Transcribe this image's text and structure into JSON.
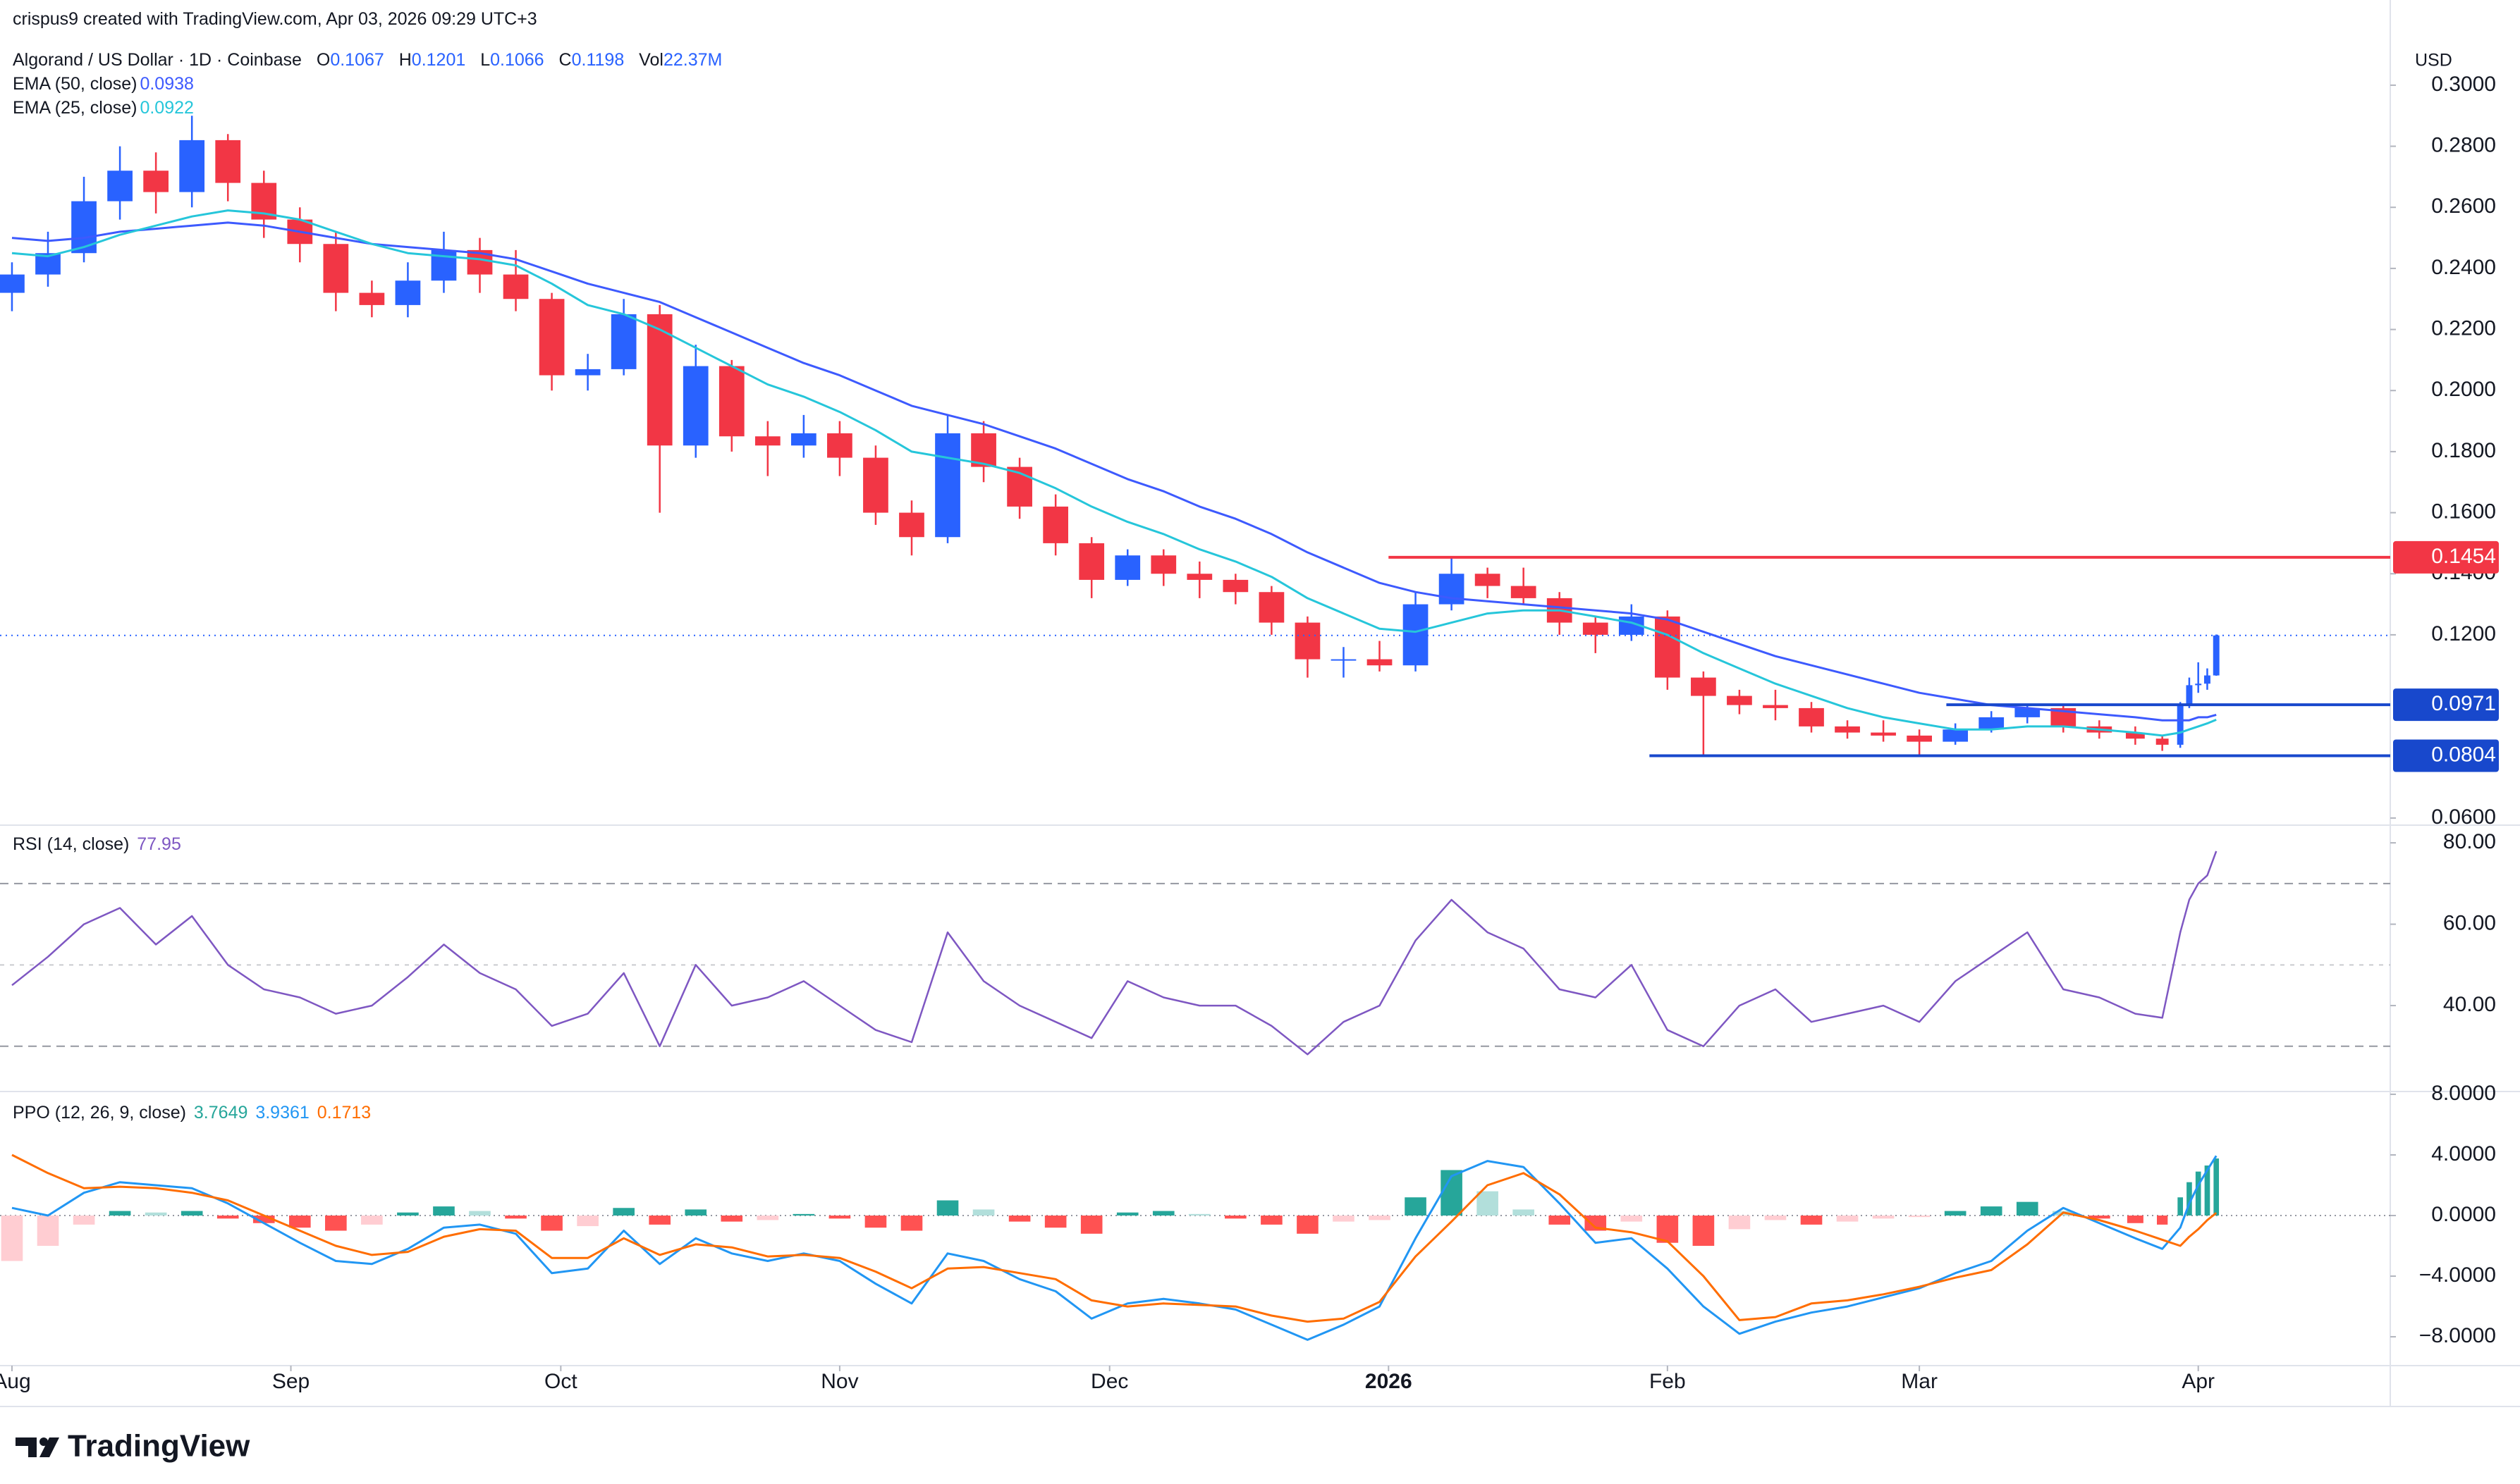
{
  "header": {
    "author_line": "crispus9 created with TradingView.com, Apr 03, 2026 09:29 UTC+3",
    "currency": "USD",
    "brand": "TradingView"
  },
  "chart_data": [
    {
      "type": "candlestick",
      "title": "Algorand / US Dollar · 1D · Coinbase",
      "ohlc_labels": [
        "O",
        "H",
        "L",
        "C"
      ],
      "volume_label": "Vol",
      "volume": "22.37M",
      "up_color": "#2962ff",
      "down_color": "#f23645",
      "x": [
        0,
        4,
        8,
        12,
        16,
        20,
        24,
        28,
        32,
        36,
        40,
        44,
        48,
        52,
        56,
        60,
        64,
        68,
        72,
        76,
        80,
        84,
        88,
        92,
        96,
        100,
        104,
        108,
        112,
        116,
        120,
        124,
        128,
        132,
        136,
        140,
        144,
        148,
        152,
        156,
        160,
        164,
        168,
        172,
        176,
        180,
        184,
        188,
        192,
        196,
        200,
        204,
        208,
        212,
        216,
        220,
        224,
        228,
        232,
        236,
        239,
        241,
        242,
        243,
        244,
        245
      ],
      "open": [
        0.232,
        0.238,
        0.245,
        0.262,
        0.272,
        0.265,
        0.282,
        0.268,
        0.256,
        0.248,
        0.232,
        0.228,
        0.236,
        0.246,
        0.238,
        0.23,
        0.205,
        0.207,
        0.225,
        0.182,
        0.208,
        0.185,
        0.182,
        0.186,
        0.178,
        0.16,
        0.152,
        0.186,
        0.175,
        0.162,
        0.15,
        0.138,
        0.146,
        0.14,
        0.138,
        0.134,
        0.124,
        0.112,
        0.112,
        0.11,
        0.13,
        0.14,
        0.136,
        0.132,
        0.124,
        0.12,
        0.126,
        0.106,
        0.1,
        0.097,
        0.096,
        0.09,
        0.088,
        0.087,
        0.085,
        0.089,
        0.093,
        0.096,
        0.09,
        0.088,
        0.086,
        0.084,
        0.097,
        0.1035,
        0.104,
        0.1067
      ],
      "high": [
        0.242,
        0.252,
        0.27,
        0.28,
        0.278,
        0.29,
        0.284,
        0.272,
        0.26,
        0.252,
        0.236,
        0.242,
        0.252,
        0.25,
        0.246,
        0.232,
        0.212,
        0.23,
        0.228,
        0.215,
        0.21,
        0.19,
        0.192,
        0.19,
        0.182,
        0.164,
        0.192,
        0.19,
        0.178,
        0.166,
        0.152,
        0.148,
        0.148,
        0.144,
        0.14,
        0.136,
        0.126,
        0.116,
        0.118,
        0.134,
        0.1454,
        0.142,
        0.142,
        0.134,
        0.126,
        0.13,
        0.128,
        0.108,
        0.102,
        0.102,
        0.098,
        0.092,
        0.092,
        0.089,
        0.091,
        0.095,
        0.0971,
        0.097,
        0.092,
        0.09,
        0.087,
        0.098,
        0.106,
        0.111,
        0.109,
        0.1201
      ],
      "low": [
        0.226,
        0.234,
        0.242,
        0.256,
        0.258,
        0.26,
        0.262,
        0.25,
        0.242,
        0.226,
        0.224,
        0.224,
        0.232,
        0.232,
        0.226,
        0.2,
        0.2,
        0.205,
        0.16,
        0.178,
        0.18,
        0.172,
        0.178,
        0.172,
        0.156,
        0.146,
        0.15,
        0.17,
        0.158,
        0.146,
        0.132,
        0.136,
        0.136,
        0.132,
        0.13,
        0.12,
        0.106,
        0.106,
        0.108,
        0.108,
        0.128,
        0.132,
        0.13,
        0.12,
        0.114,
        0.118,
        0.102,
        0.08,
        0.094,
        0.092,
        0.088,
        0.086,
        0.085,
        0.0804,
        0.084,
        0.088,
        0.091,
        0.088,
        0.086,
        0.084,
        0.082,
        0.083,
        0.096,
        0.101,
        0.102,
        0.1066
      ],
      "close": [
        0.238,
        0.245,
        0.262,
        0.272,
        0.265,
        0.282,
        0.268,
        0.256,
        0.248,
        0.232,
        0.228,
        0.236,
        0.246,
        0.238,
        0.23,
        0.205,
        0.207,
        0.225,
        0.182,
        0.208,
        0.185,
        0.182,
        0.186,
        0.178,
        0.16,
        0.152,
        0.186,
        0.175,
        0.162,
        0.15,
        0.138,
        0.146,
        0.14,
        0.138,
        0.134,
        0.124,
        0.112,
        0.112,
        0.11,
        0.13,
        0.14,
        0.136,
        0.132,
        0.124,
        0.12,
        0.126,
        0.106,
        0.1,
        0.097,
        0.096,
        0.09,
        0.088,
        0.087,
        0.085,
        0.089,
        0.093,
        0.096,
        0.09,
        0.088,
        0.086,
        0.084,
        0.097,
        0.1035,
        0.104,
        0.1067,
        0.1198
      ],
      "series": [
        {
          "name": "EMA (50, close)",
          "color": "#3d5afe",
          "values": [
            0.25,
            0.249,
            0.25,
            0.252,
            0.253,
            0.254,
            0.255,
            0.254,
            0.252,
            0.25,
            0.248,
            0.247,
            0.246,
            0.245,
            0.243,
            0.239,
            0.235,
            0.232,
            0.229,
            0.224,
            0.219,
            0.214,
            0.209,
            0.205,
            0.2,
            0.195,
            0.192,
            0.189,
            0.185,
            0.181,
            0.176,
            0.171,
            0.167,
            0.162,
            0.158,
            0.153,
            0.147,
            0.142,
            0.137,
            0.134,
            0.132,
            0.131,
            0.13,
            0.129,
            0.128,
            0.127,
            0.125,
            0.121,
            0.117,
            0.113,
            0.11,
            0.107,
            0.104,
            0.101,
            0.099,
            0.097,
            0.096,
            0.095,
            0.094,
            0.093,
            0.092,
            0.092,
            0.092,
            0.093,
            0.093,
            0.0938
          ]
        },
        {
          "name": "EMA (25, close)",
          "color": "#26c6da",
          "values": [
            0.245,
            0.244,
            0.247,
            0.251,
            0.254,
            0.257,
            0.259,
            0.258,
            0.256,
            0.252,
            0.248,
            0.245,
            0.244,
            0.243,
            0.241,
            0.235,
            0.228,
            0.225,
            0.22,
            0.214,
            0.208,
            0.202,
            0.198,
            0.193,
            0.187,
            0.18,
            0.178,
            0.176,
            0.173,
            0.168,
            0.162,
            0.157,
            0.153,
            0.148,
            0.144,
            0.139,
            0.132,
            0.127,
            0.122,
            0.121,
            0.124,
            0.127,
            0.128,
            0.128,
            0.126,
            0.124,
            0.12,
            0.114,
            0.109,
            0.104,
            0.1,
            0.096,
            0.093,
            0.091,
            0.089,
            0.089,
            0.09,
            0.09,
            0.089,
            0.088,
            0.087,
            0.088,
            0.089,
            0.09,
            0.091,
            0.0922
          ]
        }
      ],
      "xlim": [
        -1.33,
        264.34
      ],
      "xticks": [
        {
          "value": 0,
          "label": "Aug"
        },
        {
          "value": 31,
          "label": "Sep"
        },
        {
          "value": 61,
          "label": "Oct"
        },
        {
          "value": 92,
          "label": "Nov"
        },
        {
          "value": 122,
          "label": "Dec"
        },
        {
          "value": 153,
          "label": "2026"
        },
        {
          "value": 184,
          "label": "Feb"
        },
        {
          "value": 212,
          "label": "Mar"
        },
        {
          "value": 243,
          "label": "Apr"
        }
      ],
      "ylim": [
        0.0579,
        0.3279
      ],
      "yticks": [
        {
          "value": 0.06,
          "label": "0.0600"
        },
        {
          "value": 0.12,
          "label": "0.1200"
        },
        {
          "value": 0.14,
          "label": "0.1400"
        },
        {
          "value": 0.16,
          "label": "0.1600"
        },
        {
          "value": 0.18,
          "label": "0.1800"
        },
        {
          "value": 0.2,
          "label": "0.2000"
        },
        {
          "value": 0.22,
          "label": "0.2200"
        },
        {
          "value": 0.24,
          "label": "0.2400"
        },
        {
          "value": 0.26,
          "label": "0.2600"
        },
        {
          "value": 0.28,
          "label": "0.2800"
        },
        {
          "value": 0.3,
          "label": "0.3000"
        }
      ],
      "grid": false,
      "levels": [
        {
          "value": 0.1454,
          "color": "#f23645",
          "start": 153
        },
        {
          "value": 0.0971,
          "color": "#1848cc",
          "start": 215
        },
        {
          "value": 0.0804,
          "color": "#1848cc",
          "start": 182
        }
      ]
    },
    {
      "type": "line",
      "name": "RSI (14, close)",
      "color": "#7e57c2",
      "values": [
        45,
        52,
        60,
        64,
        55,
        62,
        50,
        44,
        42,
        38,
        40,
        47,
        55,
        48,
        44,
        35,
        38,
        48,
        30,
        50,
        40,
        42,
        46,
        40,
        34,
        31,
        58,
        46,
        40,
        36,
        32,
        46,
        42,
        40,
        40,
        35,
        28,
        36,
        40,
        56,
        66,
        58,
        54,
        44,
        42,
        50,
        34,
        30,
        40,
        44,
        36,
        38,
        40,
        36,
        46,
        52,
        58,
        44,
        42,
        38,
        37,
        58,
        66,
        70,
        72,
        77.95
      ],
      "ylim": [
        19.4,
        84.0
      ],
      "yticks": [
        {
          "value": 40,
          "label": "40.00"
        },
        {
          "value": 60,
          "label": "60.00"
        },
        {
          "value": 80,
          "label": "80.00"
        }
      ],
      "bands": [
        70,
        50,
        30
      ]
    },
    {
      "type": "ppo",
      "name": "PPO (12, 26, 9, close)",
      "histogram": {
        "colors": [
          "#26a69a",
          "#b2dfdb",
          "#ffcdd2",
          "#ff5252"
        ],
        "values": [
          -3.0,
          -2.0,
          -0.6,
          0.3,
          0.2,
          0.3,
          -0.2,
          -0.5,
          -0.8,
          -1.0,
          -0.6,
          0.2,
          0.6,
          0.3,
          -0.2,
          -1.0,
          -0.7,
          0.5,
          -0.6,
          0.4,
          -0.4,
          -0.3,
          0.1,
          -0.2,
          -0.8,
          -1.0,
          1.0,
          0.4,
          -0.4,
          -0.8,
          -1.2,
          0.2,
          0.3,
          0.1,
          -0.2,
          -0.6,
          -1.2,
          -0.4,
          -0.3,
          1.2,
          3.0,
          1.6,
          0.4,
          -0.6,
          -1.0,
          -0.4,
          -1.8,
          -2.0,
          -0.9,
          -0.3,
          -0.6,
          -0.4,
          -0.2,
          -0.1,
          0.3,
          0.6,
          0.9,
          0.3,
          -0.2,
          -0.5,
          -0.6,
          1.2,
          2.2,
          2.9,
          3.3,
          3.7649
        ]
      },
      "ppo": {
        "color": "#2196f3",
        "values": [
          0.5,
          0.0,
          1.5,
          2.2,
          2.0,
          1.8,
          0.8,
          -0.5,
          -1.8,
          -3.0,
          -3.2,
          -2.2,
          -0.8,
          -0.6,
          -1.2,
          -3.8,
          -3.5,
          -1.0,
          -3.2,
          -1.5,
          -2.5,
          -3.0,
          -2.5,
          -3.0,
          -4.5,
          -5.8,
          -2.5,
          -3.0,
          -4.2,
          -5.0,
          -6.8,
          -5.8,
          -5.5,
          -5.8,
          -6.2,
          -7.2,
          -8.2,
          -7.2,
          -6.0,
          -1.5,
          2.6,
          3.6,
          3.2,
          0.8,
          -1.8,
          -1.5,
          -3.5,
          -6.0,
          -7.8,
          -7.0,
          -6.4,
          -6.0,
          -5.4,
          -4.8,
          -3.8,
          -3.0,
          -1.0,
          0.5,
          -0.5,
          -1.5,
          -2.2,
          -0.8,
          0.8,
          2.0,
          3.0,
          3.9361
        ]
      },
      "signal": {
        "color": "#ff6d00",
        "values": [
          4.0,
          2.8,
          1.8,
          1.9,
          1.8,
          1.5,
          1.0,
          0.0,
          -1.0,
          -2.0,
          -2.6,
          -2.4,
          -1.4,
          -0.9,
          -1.0,
          -2.8,
          -2.8,
          -1.5,
          -2.6,
          -1.9,
          -2.1,
          -2.7,
          -2.6,
          -2.8,
          -3.7,
          -4.8,
          -3.5,
          -3.4,
          -3.8,
          -4.2,
          -5.6,
          -6.0,
          -5.8,
          -5.9,
          -6.0,
          -6.6,
          -7.0,
          -6.8,
          -5.7,
          -2.7,
          -0.4,
          2.0,
          2.8,
          1.4,
          -0.8,
          -1.1,
          -1.7,
          -4.0,
          -6.9,
          -6.7,
          -5.8,
          -5.6,
          -5.2,
          -4.7,
          -4.1,
          -3.6,
          -1.9,
          0.2,
          -0.3,
          -1.0,
          -1.6,
          -2.0,
          -1.4,
          -0.9,
          -0.3,
          0.1713
        ]
      },
      "ylim": [
        -9.81,
        8.09
      ],
      "yticks": [
        {
          "value": -8,
          "label": "−8.0000"
        },
        {
          "value": -4,
          "label": "−4.0000"
        },
        {
          "value": 0,
          "label": "0.0000"
        },
        {
          "value": 4,
          "label": "4.0000"
        },
        {
          "value": 8,
          "label": "8.0000"
        }
      ]
    }
  ]
}
